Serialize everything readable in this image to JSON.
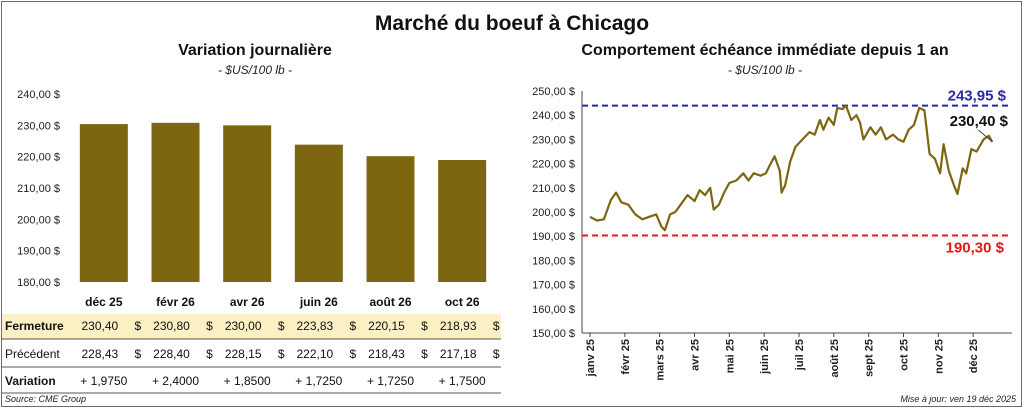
{
  "title": "Marché du boeuf à Chicago",
  "source": "Source: CME Group",
  "updated": "Mise à jour: ven 19 déc 2025",
  "colors": {
    "bar": "#7d6610",
    "line": "#7d6610",
    "highline": "#2a2aa8",
    "lowline": "#e01818",
    "table_highlight": "#fbefc4",
    "green": "#1a7a1a"
  },
  "chart_data": [
    {
      "type": "bar",
      "title": "Variation journalière",
      "subtitle": "- $US/100 lb -",
      "categories": [
        "déc 25",
        "févr 26",
        "avr 26",
        "juin 26",
        "août 26",
        "oct 26"
      ],
      "values": [
        230.4,
        230.8,
        230.0,
        223.83,
        220.15,
        218.93
      ],
      "ylim": [
        180,
        240
      ],
      "yticks": [
        "180,00 $",
        "190,00 $",
        "200,00 $",
        "210,00 $",
        "220,00 $",
        "230,00 $",
        "240,00 $"
      ],
      "table": {
        "rows": [
          {
            "label": "Fermeture",
            "cells": [
              "230,40",
              "230,80",
              "230,00",
              "223,83",
              "220,15",
              "218,93"
            ],
            "suffix": "$"
          },
          {
            "label": "Précédent",
            "cells": [
              "228,43",
              "228,40",
              "228,15",
              "222,10",
              "218,43",
              "217,18"
            ],
            "suffix": "$"
          },
          {
            "label": "Variation",
            "cells": [
              "+ 1,9750",
              "+ 2,4000",
              "+ 1,8500",
              "+ 1,7250",
              "+ 1,7250",
              "+ 1,7500"
            ],
            "suffix": ""
          }
        ]
      }
    },
    {
      "type": "line",
      "title": "Comportement échéance immédiate depuis 1 an",
      "subtitle": "- $US/100 lb -",
      "ylim": [
        150,
        250
      ],
      "yticks": [
        "150,00 $",
        "160,00 $",
        "170,00 $",
        "180,00 $",
        "190,00 $",
        "200,00 $",
        "210,00 $",
        "220,00 $",
        "230,00 $",
        "240,00 $",
        "250,00 $"
      ],
      "xticks": [
        "janv 25",
        "févr 25",
        "mars 25",
        "avr 25",
        "mai 25",
        "juin 25",
        "juil 25",
        "août 25",
        "sept 25",
        "oct 25",
        "nov 25",
        "déc 25"
      ],
      "high": {
        "value": 243.95,
        "label": "243,95 $"
      },
      "low": {
        "value": 190.3,
        "label": "190,30 $"
      },
      "last": {
        "value": 230.4,
        "label": "230,40 $"
      },
      "series": [
        {
          "values": [
            [
              0,
              198
            ],
            [
              0.2,
              196.5
            ],
            [
              0.4,
              197
            ],
            [
              0.6,
              205
            ],
            [
              0.75,
              208
            ],
            [
              0.9,
              204
            ],
            [
              1.1,
              203
            ],
            [
              1.3,
              199
            ],
            [
              1.5,
              197
            ],
            [
              1.7,
              198
            ],
            [
              1.9,
              199
            ],
            [
              2.05,
              194
            ],
            [
              2.15,
              192.5
            ],
            [
              2.3,
              199
            ],
            [
              2.45,
              200
            ],
            [
              2.6,
              203
            ],
            [
              2.8,
              207
            ],
            [
              3.0,
              204.5
            ],
            [
              3.15,
              209
            ],
            [
              3.3,
              207
            ],
            [
              3.45,
              210
            ],
            [
              3.55,
              201
            ],
            [
              3.7,
              203
            ],
            [
              3.85,
              208
            ],
            [
              4.0,
              212
            ],
            [
              4.2,
              213
            ],
            [
              4.4,
              216
            ],
            [
              4.55,
              213
            ],
            [
              4.7,
              216
            ],
            [
              4.9,
              215
            ],
            [
              5.05,
              216
            ],
            [
              5.15,
              219
            ],
            [
              5.3,
              223
            ],
            [
              5.45,
              217
            ],
            [
              5.5,
              208
            ],
            [
              5.6,
              211
            ],
            [
              5.75,
              221
            ],
            [
              5.9,
              227
            ],
            [
              6.1,
              230
            ],
            [
              6.3,
              233
            ],
            [
              6.45,
              232
            ],
            [
              6.6,
              238
            ],
            [
              6.7,
              234
            ],
            [
              6.85,
              239
            ],
            [
              7.0,
              236
            ],
            [
              7.1,
              243
            ],
            [
              7.25,
              242.5
            ],
            [
              7.35,
              243.95
            ],
            [
              7.5,
              238
            ],
            [
              7.65,
              240
            ],
            [
              7.75,
              237
            ],
            [
              7.85,
              230
            ],
            [
              8.05,
              235
            ],
            [
              8.2,
              232
            ],
            [
              8.35,
              235
            ],
            [
              8.5,
              230
            ],
            [
              8.7,
              232
            ],
            [
              8.85,
              230
            ],
            [
              9.0,
              229
            ],
            [
              9.15,
              234
            ],
            [
              9.3,
              236
            ],
            [
              9.45,
              243
            ],
            [
              9.6,
              242
            ],
            [
              9.75,
              224
            ],
            [
              9.9,
              222
            ],
            [
              10.05,
              216
            ],
            [
              10.15,
              228
            ],
            [
              10.3,
              217
            ],
            [
              10.45,
              211
            ],
            [
              10.55,
              207.5
            ],
            [
              10.7,
              218
            ],
            [
              10.8,
              216
            ],
            [
              10.95,
              226
            ],
            [
              11.1,
              225
            ],
            [
              11.3,
              230
            ],
            [
              11.45,
              231.5
            ],
            [
              11.55,
              229
            ]
          ]
        }
      ]
    }
  ]
}
